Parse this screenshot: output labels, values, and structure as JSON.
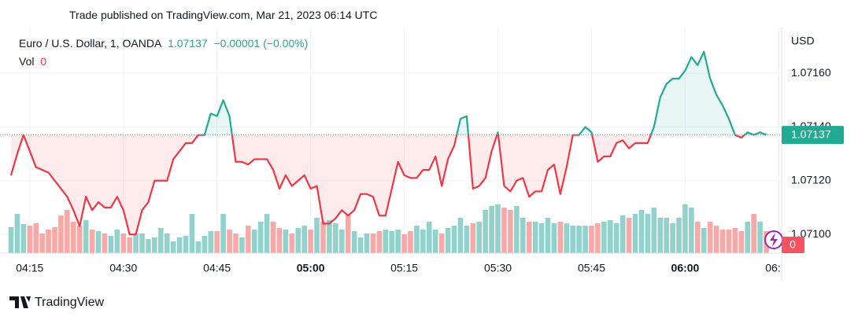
{
  "published": "Trade published on TradingView.com, Mar 21, 2023 06:14 UTC",
  "brand": "TradingView",
  "chart_data": {
    "type": "baseline_area",
    "symbol": "Euro / U.S. Dollar, 1, OANDA",
    "price": "1.07137",
    "change": "−0.00001 (−0.00%)",
    "volume_label": "Vol",
    "volume_value": "0",
    "currency": "USD",
    "x": [
      "04:12",
      "04:13",
      "04:14",
      "04:15",
      "04:16",
      "04:17",
      "04:18",
      "04:19",
      "04:20",
      "04:21",
      "04:22",
      "04:23",
      "04:24",
      "04:25",
      "04:26",
      "04:27",
      "04:28",
      "04:29",
      "04:30",
      "04:31",
      "04:32",
      "04:33",
      "04:34",
      "04:35",
      "04:36",
      "04:37",
      "04:38",
      "04:39",
      "04:40",
      "04:41",
      "04:42",
      "04:43",
      "04:44",
      "04:45",
      "04:46",
      "04:47",
      "04:48",
      "04:49",
      "04:50",
      "04:51",
      "04:52",
      "04:53",
      "04:54",
      "04:55",
      "04:56",
      "04:57",
      "04:58",
      "04:59",
      "05:00",
      "05:01",
      "05:02",
      "05:03",
      "05:04",
      "05:05",
      "05:06",
      "05:07",
      "05:08",
      "05:09",
      "05:10",
      "05:11",
      "05:12",
      "05:13",
      "05:14",
      "05:15",
      "05:16",
      "05:17",
      "05:18",
      "05:19",
      "05:20",
      "05:21",
      "05:22",
      "05:23",
      "05:24",
      "05:25",
      "05:26",
      "05:27",
      "05:28",
      "05:29",
      "05:30",
      "05:31",
      "05:32",
      "05:33",
      "05:34",
      "05:35",
      "05:36",
      "05:37",
      "05:38",
      "05:39",
      "05:40",
      "05:41",
      "05:42",
      "05:43",
      "05:44",
      "05:45",
      "05:46",
      "05:47",
      "05:48",
      "05:49",
      "05:50",
      "05:51",
      "05:52",
      "05:53",
      "05:54",
      "05:55",
      "05:56",
      "05:57",
      "05:58",
      "05:59",
      "06:00",
      "06:01",
      "06:02",
      "06:03",
      "06:04",
      "06:05",
      "06:06",
      "06:07",
      "06:08",
      "06:09",
      "06:10",
      "06:11",
      "06:12",
      "06:13"
    ],
    "values": [
      1.07122,
      1.0713,
      1.07137,
      1.07131,
      1.07125,
      1.07124,
      1.07123,
      1.0712,
      1.07117,
      1.07114,
      1.07109,
      1.07103,
      1.07114,
      1.07109,
      1.07112,
      1.0711,
      1.0711,
      1.07114,
      1.07109,
      1.071,
      1.071,
      1.07109,
      1.07112,
      1.0712,
      1.0712,
      1.0712,
      1.07128,
      1.07131,
      1.07134,
      1.07134,
      1.07137,
      1.07137,
      1.07145,
      1.07144,
      1.0715,
      1.07144,
      1.07127,
      1.07127,
      1.07126,
      1.07128,
      1.07128,
      1.07128,
      1.07124,
      1.07117,
      1.07122,
      1.07118,
      1.0712,
      1.07122,
      1.07117,
      1.07118,
      1.07104,
      1.07104,
      1.07106,
      1.07109,
      1.07107,
      1.07109,
      1.07115,
      1.07115,
      1.07114,
      1.07107,
      1.07107,
      1.07117,
      1.07127,
      1.07122,
      1.07121,
      1.07121,
      1.07124,
      1.07124,
      1.07129,
      1.07118,
      1.07128,
      1.07133,
      1.07143,
      1.07144,
      1.07117,
      1.07118,
      1.07121,
      1.07131,
      1.07138,
      1.07118,
      1.07116,
      1.0712,
      1.07121,
      1.07114,
      1.07116,
      1.07116,
      1.07124,
      1.07126,
      1.07115,
      1.07125,
      1.07137,
      1.07137,
      1.0714,
      1.07138,
      1.07127,
      1.07129,
      1.07129,
      1.07134,
      1.07135,
      1.07132,
      1.07134,
      1.07134,
      1.07134,
      1.0714,
      1.07151,
      1.07156,
      1.07158,
      1.07158,
      1.07161,
      1.07166,
      1.07163,
      1.07168,
      1.07158,
      1.07152,
      1.07148,
      1.07143,
      1.07137,
      1.07136,
      1.07138,
      1.07137,
      1.07138,
      1.07137
    ],
    "volume": [
      33,
      50,
      37,
      35,
      38,
      25,
      30,
      33,
      48,
      55,
      40,
      35,
      42,
      30,
      28,
      25,
      22,
      30,
      25,
      20,
      25,
      25,
      18,
      20,
      32,
      25,
      15,
      20,
      22,
      50,
      15,
      22,
      28,
      28,
      50,
      30,
      25,
      20,
      35,
      30,
      40,
      50,
      40,
      32,
      30,
      25,
      32,
      35,
      30,
      45,
      40,
      42,
      38,
      30,
      50,
      28,
      20,
      25,
      25,
      28,
      30,
      28,
      30,
      24,
      28,
      35,
      30,
      40,
      30,
      25,
      32,
      35,
      45,
      35,
      38,
      40,
      55,
      60,
      62,
      58,
      55,
      60,
      45,
      40,
      40,
      38,
      45,
      38,
      40,
      38,
      35,
      35,
      35,
      35,
      38,
      40,
      42,
      38,
      48,
      45,
      50,
      55,
      50,
      58,
      45,
      45,
      38,
      45,
      62,
      58,
      40,
      32,
      40,
      35,
      30,
      30,
      32,
      28,
      40,
      50,
      40,
      28
    ],
    "up_color": "#22ab94",
    "down_color": "#f23645",
    "volume_up_color": "#92d2cc",
    "volume_down_color": "#f7a9a7",
    "ylim": [
      1.07093,
      1.07177
    ],
    "yticks": [
      {
        "value": 1.071,
        "label": "1.07100"
      },
      {
        "value": 1.0712,
        "label": "1.07120"
      },
      {
        "value": 1.0714,
        "label": "1.07140"
      },
      {
        "value": 1.0716,
        "label": "1.07160"
      }
    ],
    "xticks": [
      {
        "value": 3,
        "label": "04:15"
      },
      {
        "value": 18,
        "label": "04:30"
      },
      {
        "value": 33,
        "label": "04:45"
      },
      {
        "value": 48,
        "label": "05:00"
      },
      {
        "value": 63,
        "label": "05:15"
      },
      {
        "value": 78,
        "label": "05:30"
      },
      {
        "value": 93,
        "label": "05:45"
      },
      {
        "value": 108,
        "label": "06:00"
      },
      {
        "value": 123,
        "label": "06:"
      }
    ],
    "grid": true
  }
}
